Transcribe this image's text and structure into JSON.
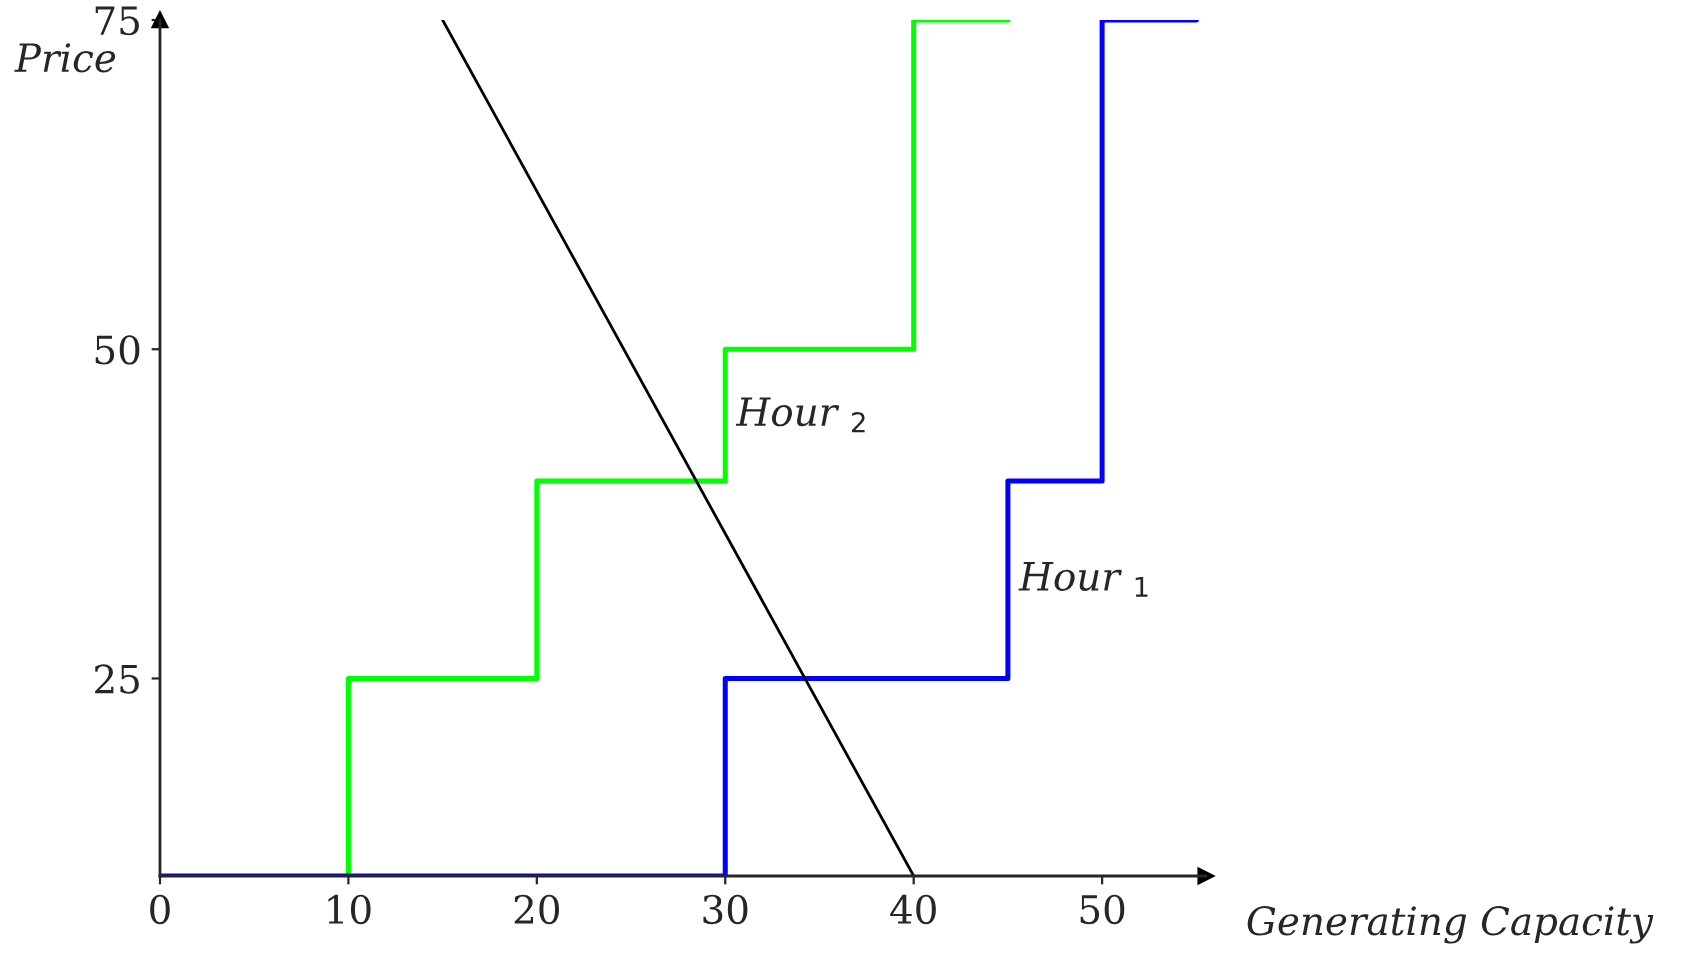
{
  "chart_data": {
    "type": "step",
    "xlabel": "Generating Capacity",
    "ylabel": "Price",
    "series": [
      {
        "name": "Hour $_{2}$",
        "color": "#00ff00",
        "x": [
          10,
          10,
          20,
          30,
          40,
          45
        ],
        "values": [
          10,
          25,
          40,
          50,
          75,
          75
        ]
      },
      {
        "name": "Hour $_{1}$",
        "color": "#0000ff",
        "x": [
          0,
          30,
          45,
          50,
          55
        ],
        "values": [
          10,
          25,
          40,
          75,
          75
        ]
      },
      {
        "type": "line",
        "color": "#000000",
        "x": [
          15,
          40
        ],
        "values": [
          75,
          10
        ]
      }
    ],
    "xlim": [
      0,
      55.5
    ],
    "ylim": [
      10,
      75
    ],
    "xticks": [
      0,
      10,
      20,
      30,
      40,
      50
    ],
    "yticks": [
      25,
      50,
      75
    ],
    "grid": false,
    "legend": false
  }
}
